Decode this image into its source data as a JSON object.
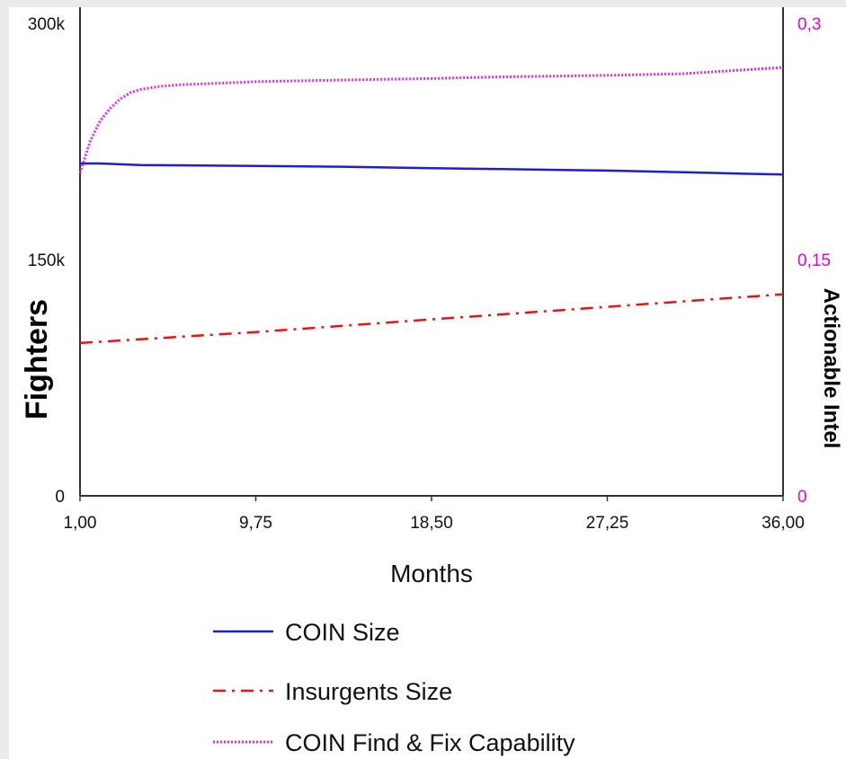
{
  "chart_data": {
    "type": "line",
    "title": "",
    "xlabel": "Months",
    "ylabel": "Fighters",
    "y2label": "Actionable Intel",
    "xlim": [
      1,
      36
    ],
    "ylim": [
      0,
      300000
    ],
    "y2lim": [
      0,
      0.3
    ],
    "x_ticks": [
      "1,00",
      "9,75",
      "18,50",
      "27,25",
      "36,00"
    ],
    "y_ticks": [
      "0",
      "150k",
      "300k"
    ],
    "y2_ticks": [
      "0",
      "0,15",
      "0,3"
    ],
    "grid": false,
    "legend_position": "bottom",
    "series": [
      {
        "name": "COIN Size",
        "axis": "left",
        "color": "#1c1cdc",
        "style": "solid",
        "x": [
          1,
          2,
          4,
          9.75,
          14,
          18.5,
          22,
          27.25,
          31,
          34,
          36
        ],
        "values": [
          211000,
          211000,
          210000,
          209500,
          209000,
          208000,
          207500,
          206500,
          205500,
          204500,
          204000
        ]
      },
      {
        "name": "Insurgents Size",
        "axis": "left",
        "color": "#ee1111",
        "style": "dashdot",
        "x": [
          1,
          9.75,
          18.5,
          27.25,
          36
        ],
        "values": [
          97000,
          104000,
          112000,
          120000,
          128000
        ]
      },
      {
        "name": "COIN Find & Fix Capability",
        "axis": "right",
        "color": "#ee22ee",
        "style": "dotted",
        "x": [
          1,
          1.5,
          2,
          2.5,
          3,
          3.5,
          4,
          5,
          6,
          8,
          9.75,
          14,
          18.5,
          22,
          27.25,
          31,
          36
        ],
        "values": [
          0.205,
          0.225,
          0.238,
          0.246,
          0.252,
          0.256,
          0.258,
          0.26,
          0.261,
          0.262,
          0.263,
          0.264,
          0.265,
          0.266,
          0.267,
          0.268,
          0.272
        ]
      }
    ]
  }
}
